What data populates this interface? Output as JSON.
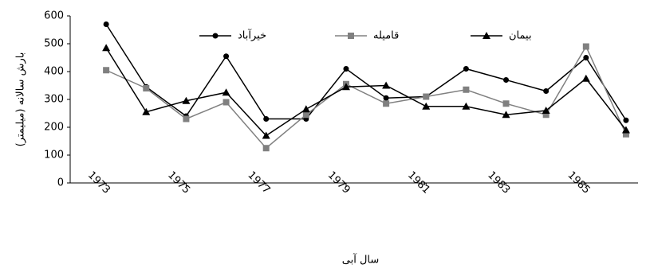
{
  "chart_data": {
    "type": "line",
    "y_label": "بارش سالانه (میلیمتر)",
    "x_label": "سال آبی",
    "x": [
      1973,
      1974,
      1975,
      1976,
      1977,
      1978,
      1979,
      1980,
      1981,
      1982,
      1983,
      1984,
      1985,
      1986
    ],
    "xlim": [
      1972.1,
      1986.3
    ],
    "xticks": [
      1973,
      1975,
      1977,
      1979,
      1981,
      1983,
      1985
    ],
    "ylim": [
      0,
      600
    ],
    "yticks": [
      0,
      100,
      200,
      300,
      400,
      500,
      600
    ],
    "grid": false,
    "legend": "top",
    "series": [
      {
        "name": "خیرآباد",
        "color": "#000000",
        "marker": "circle",
        "values": [
          570,
          345,
          240,
          455,
          230,
          230,
          410,
          305,
          310,
          410,
          370,
          330,
          450,
          225
        ]
      },
      {
        "name": "قامیله",
        "color": "#808080",
        "marker": "square",
        "values": [
          405,
          340,
          230,
          290,
          125,
          245,
          355,
          285,
          310,
          335,
          285,
          245,
          490,
          175
        ]
      },
      {
        "name": "بیمان",
        "color": "#000000",
        "marker": "triangle",
        "values": [
          485,
          255,
          295,
          325,
          170,
          265,
          345,
          350,
          275,
          275,
          245,
          260,
          375,
          190
        ]
      }
    ]
  }
}
